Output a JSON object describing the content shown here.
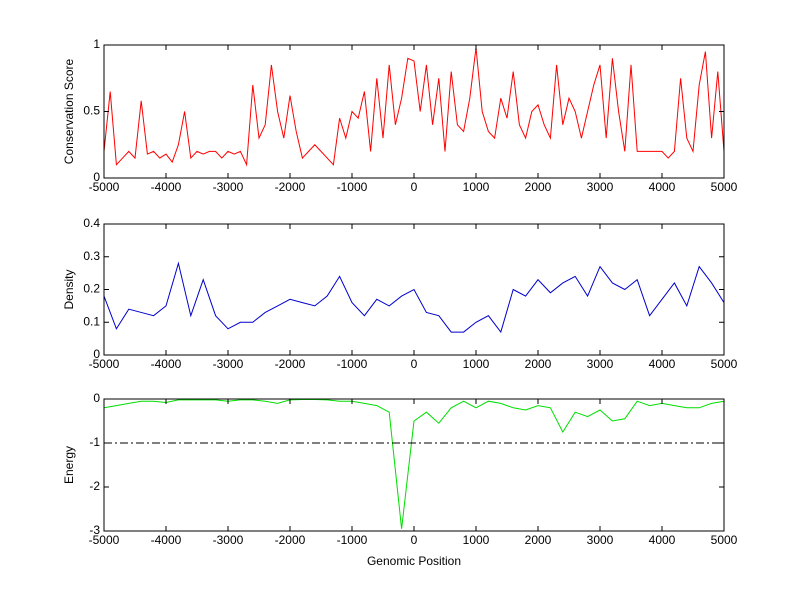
{
  "chart_data": [
    {
      "type": "line",
      "ylabel": "Conservation Score",
      "color": "#ff0000",
      "x": [
        -5000,
        -4900,
        -4800,
        -4700,
        -4600,
        -4500,
        -4400,
        -4300,
        -4200,
        -4100,
        -4000,
        -3900,
        -3800,
        -3700,
        -3600,
        -3500,
        -3400,
        -3300,
        -3200,
        -3100,
        -3000,
        -2900,
        -2800,
        -2700,
        -2600,
        -2500,
        -2400,
        -2300,
        -2200,
        -2100,
        -2000,
        -1900,
        -1800,
        -1700,
        -1600,
        -1500,
        -1400,
        -1300,
        -1200,
        -1100,
        -1000,
        -900,
        -800,
        -700,
        -600,
        -500,
        -400,
        -300,
        -200,
        -100,
        0,
        100,
        200,
        300,
        400,
        500,
        600,
        700,
        800,
        900,
        1000,
        1100,
        1200,
        1300,
        1400,
        1500,
        1600,
        1700,
        1800,
        1900,
        2000,
        2100,
        2200,
        2300,
        2400,
        2500,
        2600,
        2700,
        2800,
        2900,
        3000,
        3100,
        3200,
        3300,
        3400,
        3500,
        3600,
        3700,
        3800,
        3900,
        4000,
        4100,
        4200,
        4300,
        4400,
        4500,
        4600,
        4700,
        4800,
        4900,
        5000
      ],
      "values": [
        0.2,
        0.65,
        0.1,
        0.15,
        0.2,
        0.15,
        0.58,
        0.18,
        0.2,
        0.15,
        0.18,
        0.12,
        0.25,
        0.5,
        0.15,
        0.2,
        0.18,
        0.2,
        0.2,
        0.15,
        0.2,
        0.18,
        0.2,
        0.1,
        0.7,
        0.3,
        0.4,
        0.85,
        0.5,
        0.3,
        0.62,
        0.35,
        0.15,
        0.2,
        0.25,
        0.2,
        0.15,
        0.1,
        0.45,
        0.3,
        0.5,
        0.45,
        0.65,
        0.2,
        0.75,
        0.3,
        0.85,
        0.4,
        0.6,
        0.9,
        0.88,
        0.5,
        0.85,
        0.4,
        0.75,
        0.2,
        0.8,
        0.4,
        0.35,
        0.6,
        0.98,
        0.5,
        0.35,
        0.3,
        0.6,
        0.45,
        0.8,
        0.4,
        0.3,
        0.5,
        0.55,
        0.4,
        0.3,
        0.85,
        0.4,
        0.6,
        0.5,
        0.3,
        0.5,
        0.7,
        0.85,
        0.3,
        0.9,
        0.5,
        0.2,
        0.85,
        0.2,
        0.2,
        0.2,
        0.2,
        0.2,
        0.15,
        0.2,
        0.75,
        0.3,
        0.2,
        0.7,
        0.95,
        0.3,
        0.8,
        0.2
      ],
      "xlim": [
        -5000,
        5000
      ],
      "xticks": [
        -5000,
        -4000,
        -3000,
        -2000,
        -1000,
        0,
        1000,
        2000,
        3000,
        4000,
        5000
      ],
      "ylim": [
        0,
        1
      ],
      "yticks": [
        0,
        0.5,
        1
      ]
    },
    {
      "type": "line",
      "ylabel": "Density",
      "color": "#0000cc",
      "x": [
        -5000,
        -4800,
        -4600,
        -4400,
        -4200,
        -4000,
        -3800,
        -3600,
        -3400,
        -3200,
        -3000,
        -2800,
        -2600,
        -2400,
        -2200,
        -2000,
        -1800,
        -1600,
        -1400,
        -1200,
        -1000,
        -800,
        -600,
        -400,
        -200,
        0,
        200,
        400,
        600,
        800,
        1000,
        1200,
        1400,
        1600,
        1800,
        2000,
        2200,
        2400,
        2600,
        2800,
        3000,
        3200,
        3400,
        3600,
        3800,
        4000,
        4200,
        4400,
        4600,
        4800,
        5000
      ],
      "values": [
        0.18,
        0.08,
        0.14,
        0.13,
        0.12,
        0.15,
        0.28,
        0.12,
        0.23,
        0.12,
        0.08,
        0.1,
        0.1,
        0.13,
        0.15,
        0.17,
        0.16,
        0.15,
        0.18,
        0.24,
        0.16,
        0.12,
        0.17,
        0.15,
        0.18,
        0.2,
        0.13,
        0.12,
        0.07,
        0.07,
        0.1,
        0.12,
        0.07,
        0.2,
        0.18,
        0.23,
        0.19,
        0.22,
        0.24,
        0.18,
        0.27,
        0.22,
        0.2,
        0.23,
        0.12,
        0.17,
        0.22,
        0.15,
        0.27,
        0.22,
        0.16
      ],
      "xlim": [
        -5000,
        5000
      ],
      "xticks": [
        -5000,
        -4000,
        -3000,
        -2000,
        -1000,
        0,
        1000,
        2000,
        3000,
        4000,
        5000
      ],
      "ylim": [
        0,
        0.4
      ],
      "yticks": [
        0,
        0.1,
        0.2,
        0.3,
        0.4
      ]
    },
    {
      "type": "line",
      "ylabel": "Energy",
      "xlabel": "Genomic Position",
      "color": "#00dd00",
      "hline": -1,
      "x": [
        -5000,
        -4800,
        -4600,
        -4400,
        -4200,
        -4000,
        -3800,
        -3600,
        -3400,
        -3200,
        -3000,
        -2800,
        -2600,
        -2400,
        -2200,
        -2000,
        -1800,
        -1600,
        -1400,
        -1200,
        -1000,
        -800,
        -600,
        -400,
        -200,
        0,
        200,
        400,
        600,
        800,
        1000,
        1200,
        1400,
        1600,
        1800,
        2000,
        2200,
        2400,
        2600,
        2800,
        3000,
        3200,
        3400,
        3600,
        3800,
        4000,
        4200,
        4400,
        4600,
        4800,
        5000
      ],
      "values": [
        -0.2,
        -0.15,
        -0.1,
        -0.05,
        -0.05,
        -0.08,
        -0.02,
        -0.02,
        -0.02,
        -0.02,
        -0.05,
        -0.02,
        -0.02,
        -0.05,
        -0.1,
        -0.02,
        -0.01,
        -0.01,
        -0.02,
        -0.05,
        -0.05,
        -0.1,
        -0.15,
        -0.3,
        -2.95,
        -0.5,
        -0.3,
        -0.55,
        -0.2,
        -0.05,
        -0.2,
        -0.05,
        -0.1,
        -0.2,
        -0.25,
        -0.15,
        -0.2,
        -0.75,
        -0.3,
        -0.4,
        -0.25,
        -0.5,
        -0.45,
        -0.05,
        -0.15,
        -0.1,
        -0.15,
        -0.2,
        -0.2,
        -0.1,
        -0.05
      ],
      "xlim": [
        -5000,
        5000
      ],
      "xticks": [
        -5000,
        -4000,
        -3000,
        -2000,
        -1000,
        0,
        1000,
        2000,
        3000,
        4000,
        5000
      ],
      "ylim": [
        -3,
        0
      ],
      "yticks": [
        -3,
        -2,
        -1,
        0
      ]
    }
  ]
}
